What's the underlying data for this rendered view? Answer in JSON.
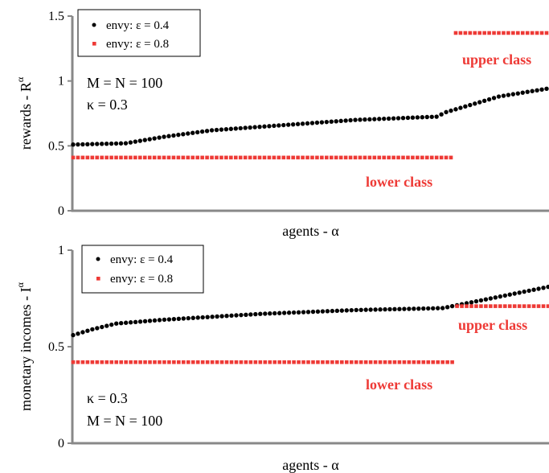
{
  "chart_data": [
    {
      "type": "scatter",
      "ylabel": "rewards - R",
      "ylabel_sup": "α",
      "xlabel": "agents - α",
      "ylim": [
        0,
        1.5
      ],
      "xlim": [
        0,
        100
      ],
      "yticks": [
        "0",
        "0.5",
        "1",
        "1.5"
      ],
      "ytick_values": [
        0,
        0.5,
        1,
        1.5
      ],
      "legend": {
        "position": "top-left",
        "entries": [
          "envy: ε = 0.4",
          "envy: ε = 0.8"
        ]
      },
      "annotations": [
        "M = N = 100",
        "κ = 0.3"
      ],
      "class_labels": {
        "upper": "upper class",
        "lower": "lower class"
      },
      "colors": {
        "series1": "#000000",
        "series2": "#ee3a36"
      },
      "series": [
        {
          "name": "envy: ε = 0.4",
          "marker": "circle",
          "x_range": [
            1,
            100
          ],
          "y_keypoints": [
            [
              1,
              0.51
            ],
            [
              12,
              0.52
            ],
            [
              20,
              0.57
            ],
            [
              30,
              0.62
            ],
            [
              45,
              0.66
            ],
            [
              60,
              0.7
            ],
            [
              77,
              0.725
            ],
            [
              79,
              0.76
            ],
            [
              90,
              0.88
            ],
            [
              100,
              0.94
            ]
          ]
        },
        {
          "name": "envy: ε = 0.8",
          "marker": "square",
          "segments": [
            {
              "x_range": [
                1,
                80
              ],
              "y": 0.41
            },
            {
              "x_range": [
                81,
                100
              ],
              "y": 1.37
            }
          ]
        }
      ]
    },
    {
      "type": "scatter",
      "ylabel": "monetary incomes - I",
      "ylabel_sup": "α",
      "xlabel": "agents - α",
      "ylim": [
        0,
        1
      ],
      "xlim": [
        0,
        100
      ],
      "yticks": [
        "0",
        "0.5",
        "1"
      ],
      "ytick_values": [
        0,
        0.5,
        1
      ],
      "legend": {
        "position": "top-left",
        "entries": [
          "envy: ε = 0.4",
          "envy: ε = 0.8"
        ]
      },
      "annotations": [
        "κ = 0.3",
        "M = N = 100"
      ],
      "class_labels": {
        "upper": "upper class",
        "lower": "lower class"
      },
      "colors": {
        "series1": "#000000",
        "series2": "#ee3a36"
      },
      "series": [
        {
          "name": "envy: ε = 0.4",
          "marker": "circle",
          "x_range": [
            1,
            100
          ],
          "y_keypoints": [
            [
              1,
              0.56
            ],
            [
              5,
              0.59
            ],
            [
              10,
              0.62
            ],
            [
              20,
              0.64
            ],
            [
              40,
              0.67
            ],
            [
              60,
              0.69
            ],
            [
              78,
              0.7
            ],
            [
              80,
              0.71
            ],
            [
              90,
              0.76
            ],
            [
              100,
              0.81
            ]
          ]
        },
        {
          "name": "envy: ε = 0.8",
          "marker": "square",
          "segments": [
            {
              "x_range": [
                1,
                80
              ],
              "y": 0.42
            },
            {
              "x_range": [
                81,
                100
              ],
              "y": 0.71
            }
          ]
        }
      ]
    }
  ]
}
